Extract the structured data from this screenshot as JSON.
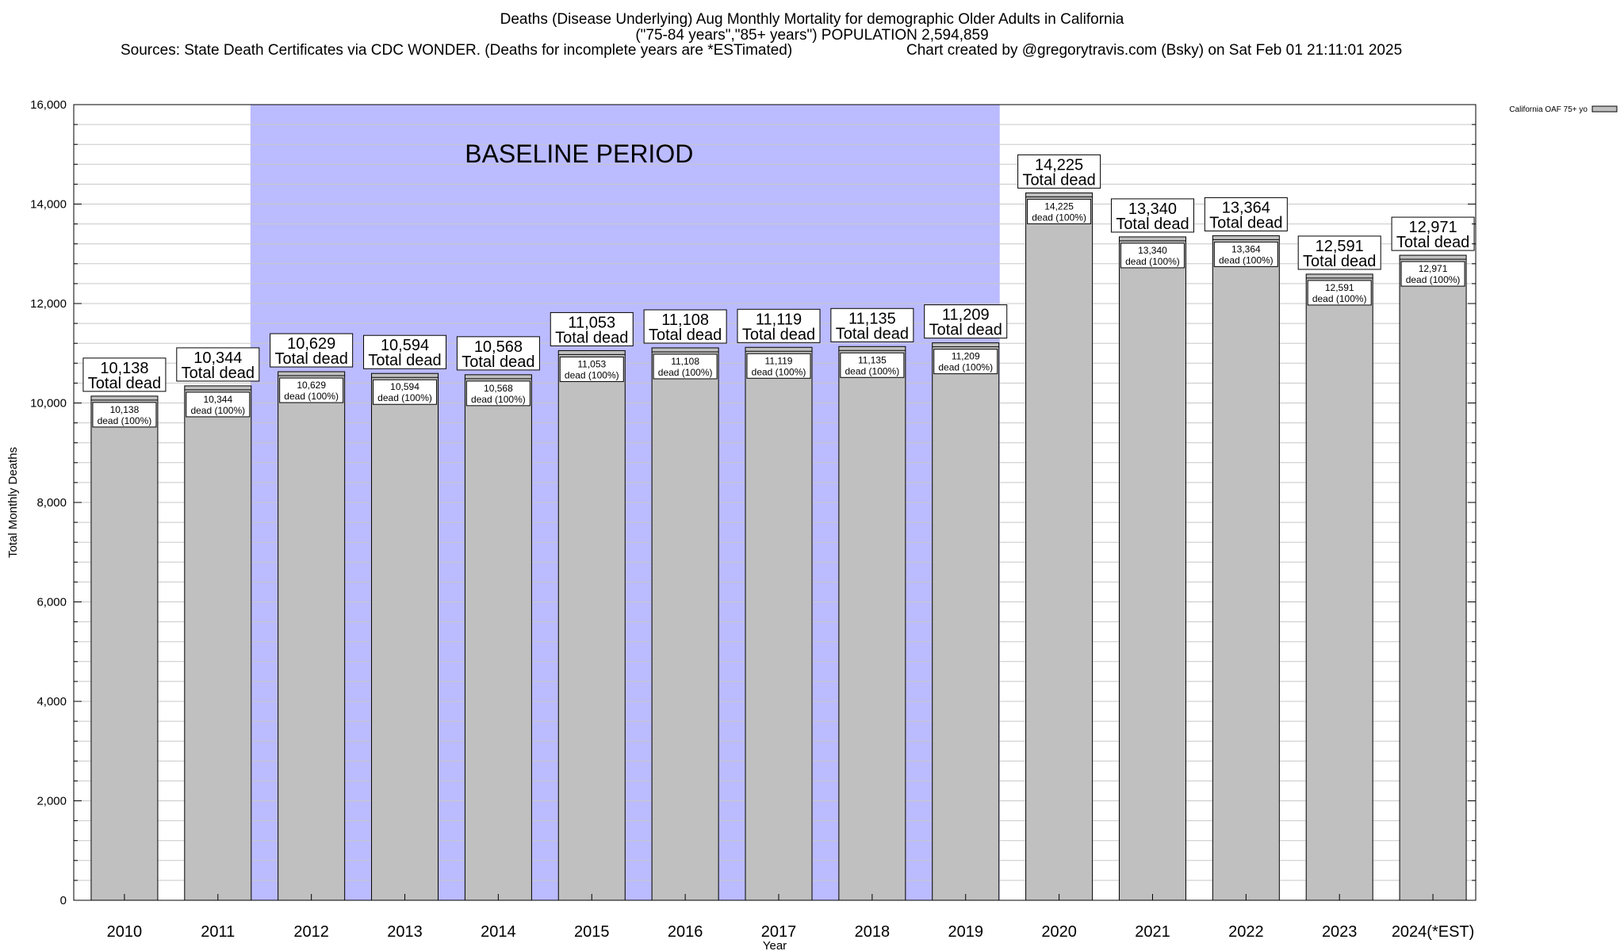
{
  "chart_data": {
    "type": "bar",
    "title_line1": "Deaths (Disease Underlying) Aug Monthly Mortality for demographic Older Adults in California",
    "title_line2": "(\"75-84 years\",\"85+ years\") POPULATION 2,594,859",
    "sources": "Sources: State Death Certificates via CDC WONDER. (Deaths for incomplete years are *ESTimated)",
    "credit": "Chart created by @gregorytravis.com (Bsky) on Sat Feb 01 21:11:01 2025",
    "xlabel": "Year",
    "ylabel": "Total Monthly Deaths",
    "ylim": [
      0,
      16000
    ],
    "yticks": [
      0,
      2000,
      4000,
      6000,
      8000,
      10000,
      12000,
      14000,
      16000
    ],
    "ytick_labels": [
      "0",
      "2,000",
      "4,000",
      "6,000",
      "8,000",
      "10,000",
      "12,000",
      "14,000",
      "16,000"
    ],
    "legend": {
      "label": "California OAF 75+ yo",
      "position": "top-right"
    },
    "baseline": {
      "label": "BASELINE PERIOD",
      "start": "2012",
      "end": "2019"
    },
    "categories": [
      "2010",
      "2011",
      "2012",
      "2013",
      "2014",
      "2015",
      "2016",
      "2017",
      "2018",
      "2019",
      "2020",
      "2021",
      "2022",
      "2023",
      "2024(*EST)"
    ],
    "values": [
      10138,
      10344,
      10629,
      10594,
      10568,
      11053,
      11108,
      11119,
      11135,
      11209,
      14225,
      13340,
      13364,
      12591,
      12971
    ],
    "value_labels": [
      "10,138",
      "10,344",
      "10,629",
      "10,594",
      "10,568",
      "11,053",
      "11,108",
      "11,119",
      "11,135",
      "11,209",
      "14,225",
      "13,340",
      "13,364",
      "12,591",
      "12,971"
    ],
    "total_label": "Total dead",
    "inner_label_suffix": "dead (100%)",
    "colors": {
      "bar": "#c0c0c0",
      "baseline": "#bbbbff",
      "grid": "#c8c8c8"
    }
  }
}
